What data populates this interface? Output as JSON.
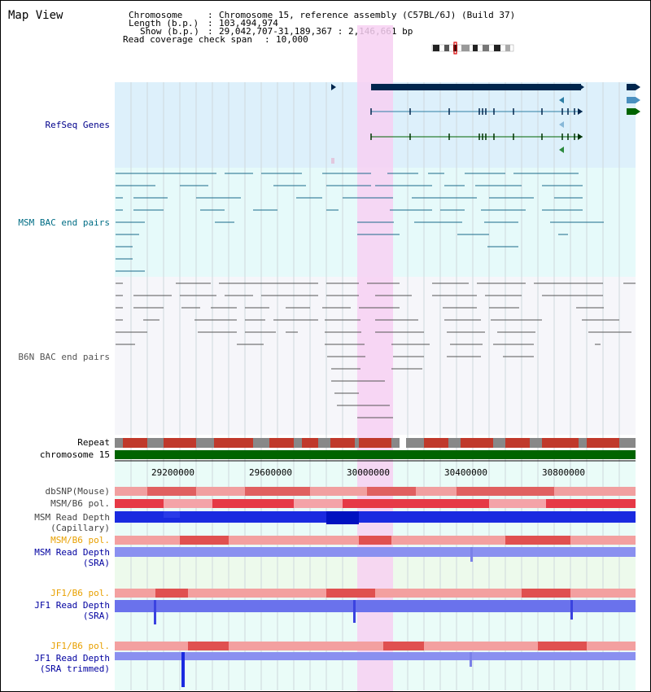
{
  "title": "Map View",
  "header": {
    "rows": [
      {
        "key": "Chromosome",
        "sep": ":",
        "value": "Chromosome 15, reference assembly (C57BL/6J) (Build 37)"
      },
      {
        "key": "Length (b.p.)",
        "sep": ":",
        "value": "103,494,974"
      },
      {
        "key": "Show (b.p.)",
        "sep": ":",
        "value": "29,042,707-31,189,367 : 2,146,661 bp"
      },
      {
        "key": "Read coverage check span",
        "sep": ":",
        "value": "10,000"
      }
    ]
  },
  "tracks": {
    "refseq": "RefSeq Genes",
    "msm_bac": "MSM BAC end pairs",
    "b6n_bac": "B6N BAC end pairs",
    "repeat": "Repeat",
    "chromosome": "chromosome 15",
    "dbsnp": "dbSNP(Mouse)",
    "msm_b6_pol_1": "MSM/B6 pol.",
    "msm_read_depth_cap_1": "MSM Read Depth",
    "msm_read_depth_cap_2": "(Capillary)",
    "msm_b6_pol_2": "MSM/B6 pol.",
    "msm_read_depth_sra_1": "MSM Read Depth",
    "msm_read_depth_sra_2": "(SRA)",
    "jf1_b6_pol_1": "JF1/B6 pol.",
    "jf1_read_depth_1": "JF1 Read Depth",
    "jf1_read_depth_2": "(SRA)",
    "jf1_b6_pol_2": "JF1/B6 pol.",
    "jf1_read_depth_trim_1": "JF1 Read Depth",
    "jf1_read_depth_trim_2": "(SRA trimmed)"
  },
  "axis": {
    "ticks": [
      "29200000",
      "29600000",
      "30000000",
      "30400000",
      "30800000"
    ]
  },
  "colors": {
    "refseq_bg": "#ddf0fb",
    "bac_bg": "#e6fafa",
    "highlight": "#f7d0f2",
    "refseq_label": "#00008b",
    "msm_label": "#006d85",
    "b6n_label": "#555555",
    "orange_label": "#e8a000",
    "blue_label": "#0000a0",
    "chromosome_bar": "#006400"
  }
}
